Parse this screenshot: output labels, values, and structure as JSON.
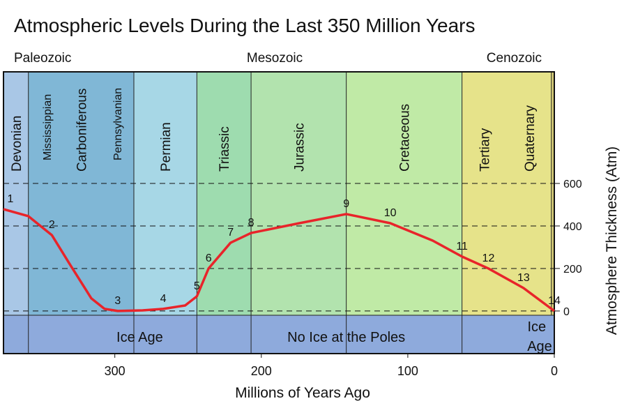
{
  "chart_data": {
    "type": "line",
    "title": "Atmospheric Levels During the Last 350 Million Years",
    "x_label": "Millions of Years Ago",
    "y_label": "Atmosphere Thickness (Atm)",
    "eras": [
      "Paleozoic",
      "Mesozoic",
      "Cenozoic"
    ],
    "bands": [
      {
        "start": 376,
        "end": 359,
        "color": "#a9c7e6",
        "labels": [
          "Devonian"
        ]
      },
      {
        "start": 359,
        "end": 287,
        "color": "#80b7d6",
        "labels": [
          "Mississippian",
          "Carboniferous",
          "Pennsylvanian"
        ]
      },
      {
        "start": 287,
        "end": 244,
        "color": "#a7d7e6",
        "labels": [
          "Permian"
        ]
      },
      {
        "start": 244,
        "end": 207,
        "color": "#9edcaf",
        "labels": [
          "Triassic"
        ]
      },
      {
        "start": 207,
        "end": 142,
        "color": "#b2e3ae",
        "labels": [
          "Jurassic"
        ]
      },
      {
        "start": 142,
        "end": 63,
        "color": "#c0eaa6",
        "labels": [
          "Cretaceous"
        ]
      },
      {
        "start": 63,
        "end": 2,
        "color": "#e6e38a",
        "labels": [
          "Tertiary",
          "Quaternary"
        ]
      }
    ],
    "ice_labels": [
      {
        "text": "Ice Age",
        "x": 283
      },
      {
        "text": "No Ice at the Poles",
        "x": 142
      },
      {
        "text": "Ice",
        "x": 12
      },
      {
        "text": "Age",
        "x": 10
      }
    ],
    "x": [
      376,
      359,
      343,
      331,
      316,
      307,
      298,
      281,
      267,
      252,
      244,
      236,
      221,
      207,
      174,
      142,
      112,
      83,
      63,
      45,
      21,
      0
    ],
    "series": [
      {
        "name": "Atmosphere",
        "color": "#e8242a",
        "values": [
          479,
          446,
          357,
          223,
          59,
          10,
          0,
          3,
          10,
          26,
          69,
          200,
          321,
          367,
          413,
          456,
          413,
          331,
          256,
          200,
          108,
          0
        ],
        "labels": [
          "1",
          null,
          "2",
          null,
          null,
          null,
          "3",
          null,
          "4",
          null,
          "5",
          "6",
          "7",
          "8",
          null,
          "9",
          "10",
          null,
          "11",
          "12",
          "13",
          "14"
        ]
      }
    ],
    "xlim": [
      376,
      0
    ],
    "xticks": [
      300,
      200,
      100,
      0
    ],
    "ylim": [
      -20,
      1125
    ],
    "yticks": [
      0,
      200,
      400,
      600
    ],
    "grid": true
  }
}
